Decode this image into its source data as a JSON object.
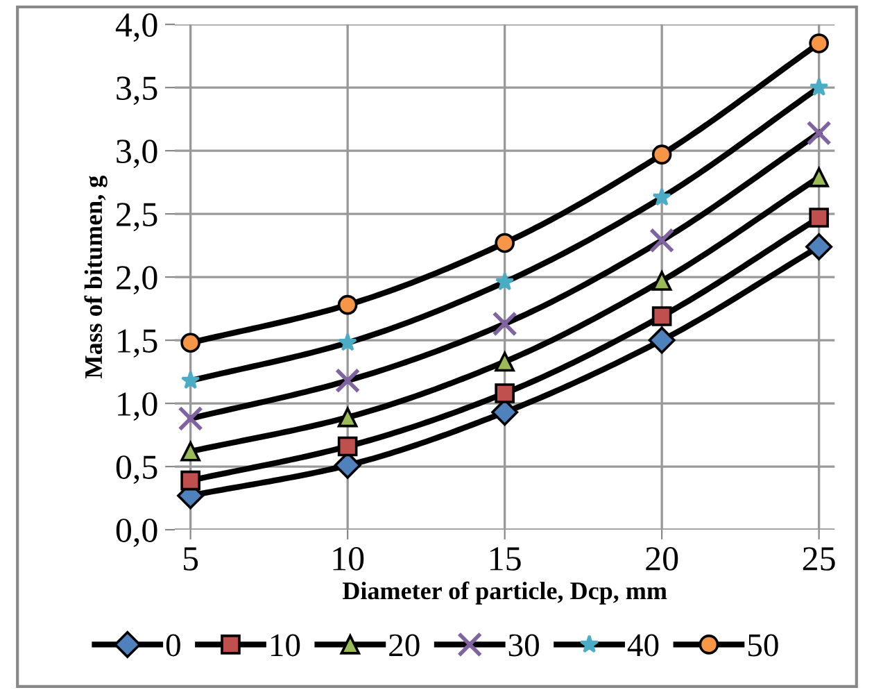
{
  "chart_data": {
    "type": "line",
    "xlabel": "Diameter of particle, Dcp, mm",
    "ylabel": "Mass of bitumen, g",
    "x": [
      5,
      10,
      15,
      20,
      25
    ],
    "series": [
      {
        "name": "0",
        "color": "#4f81bd",
        "marker": "diamond",
        "values": [
          0.27,
          0.51,
          0.93,
          1.5,
          2.24
        ]
      },
      {
        "name": "10",
        "color": "#c0504d",
        "marker": "square",
        "values": [
          0.39,
          0.66,
          1.08,
          1.69,
          2.47
        ]
      },
      {
        "name": "20",
        "color": "#9bbb59",
        "marker": "triangle",
        "values": [
          0.62,
          0.89,
          1.33,
          1.97,
          2.79
        ]
      },
      {
        "name": "30",
        "color": "#8064a2",
        "marker": "cross",
        "values": [
          0.88,
          1.18,
          1.63,
          2.29,
          3.14
        ]
      },
      {
        "name": "40",
        "color": "#4bacc6",
        "marker": "star",
        "values": [
          1.18,
          1.48,
          1.96,
          2.63,
          3.5
        ]
      },
      {
        "name": "50",
        "color": "#f79646",
        "marker": "circle",
        "values": [
          1.48,
          1.78,
          2.27,
          2.97,
          3.85
        ]
      }
    ],
    "xlim": [
      4.5,
      25.5
    ],
    "xticks": [
      5,
      10,
      15,
      20,
      25
    ],
    "ylim": [
      0,
      4
    ],
    "yticks": [
      {
        "value": 0,
        "label": "0,0"
      },
      {
        "value": 0.5,
        "label": "0,5"
      },
      {
        "value": 1,
        "label": "1,0"
      },
      {
        "value": 1.5,
        "label": "1,5"
      },
      {
        "value": 2,
        "label": "2,0"
      },
      {
        "value": 2.5,
        "label": "2,5"
      },
      {
        "value": 3,
        "label": "3,0"
      },
      {
        "value": 3.5,
        "label": "3,5"
      },
      {
        "value": 4,
        "label": "4,0"
      }
    ],
    "grid": true,
    "legend": "bottom",
    "line_style": "solid"
  }
}
